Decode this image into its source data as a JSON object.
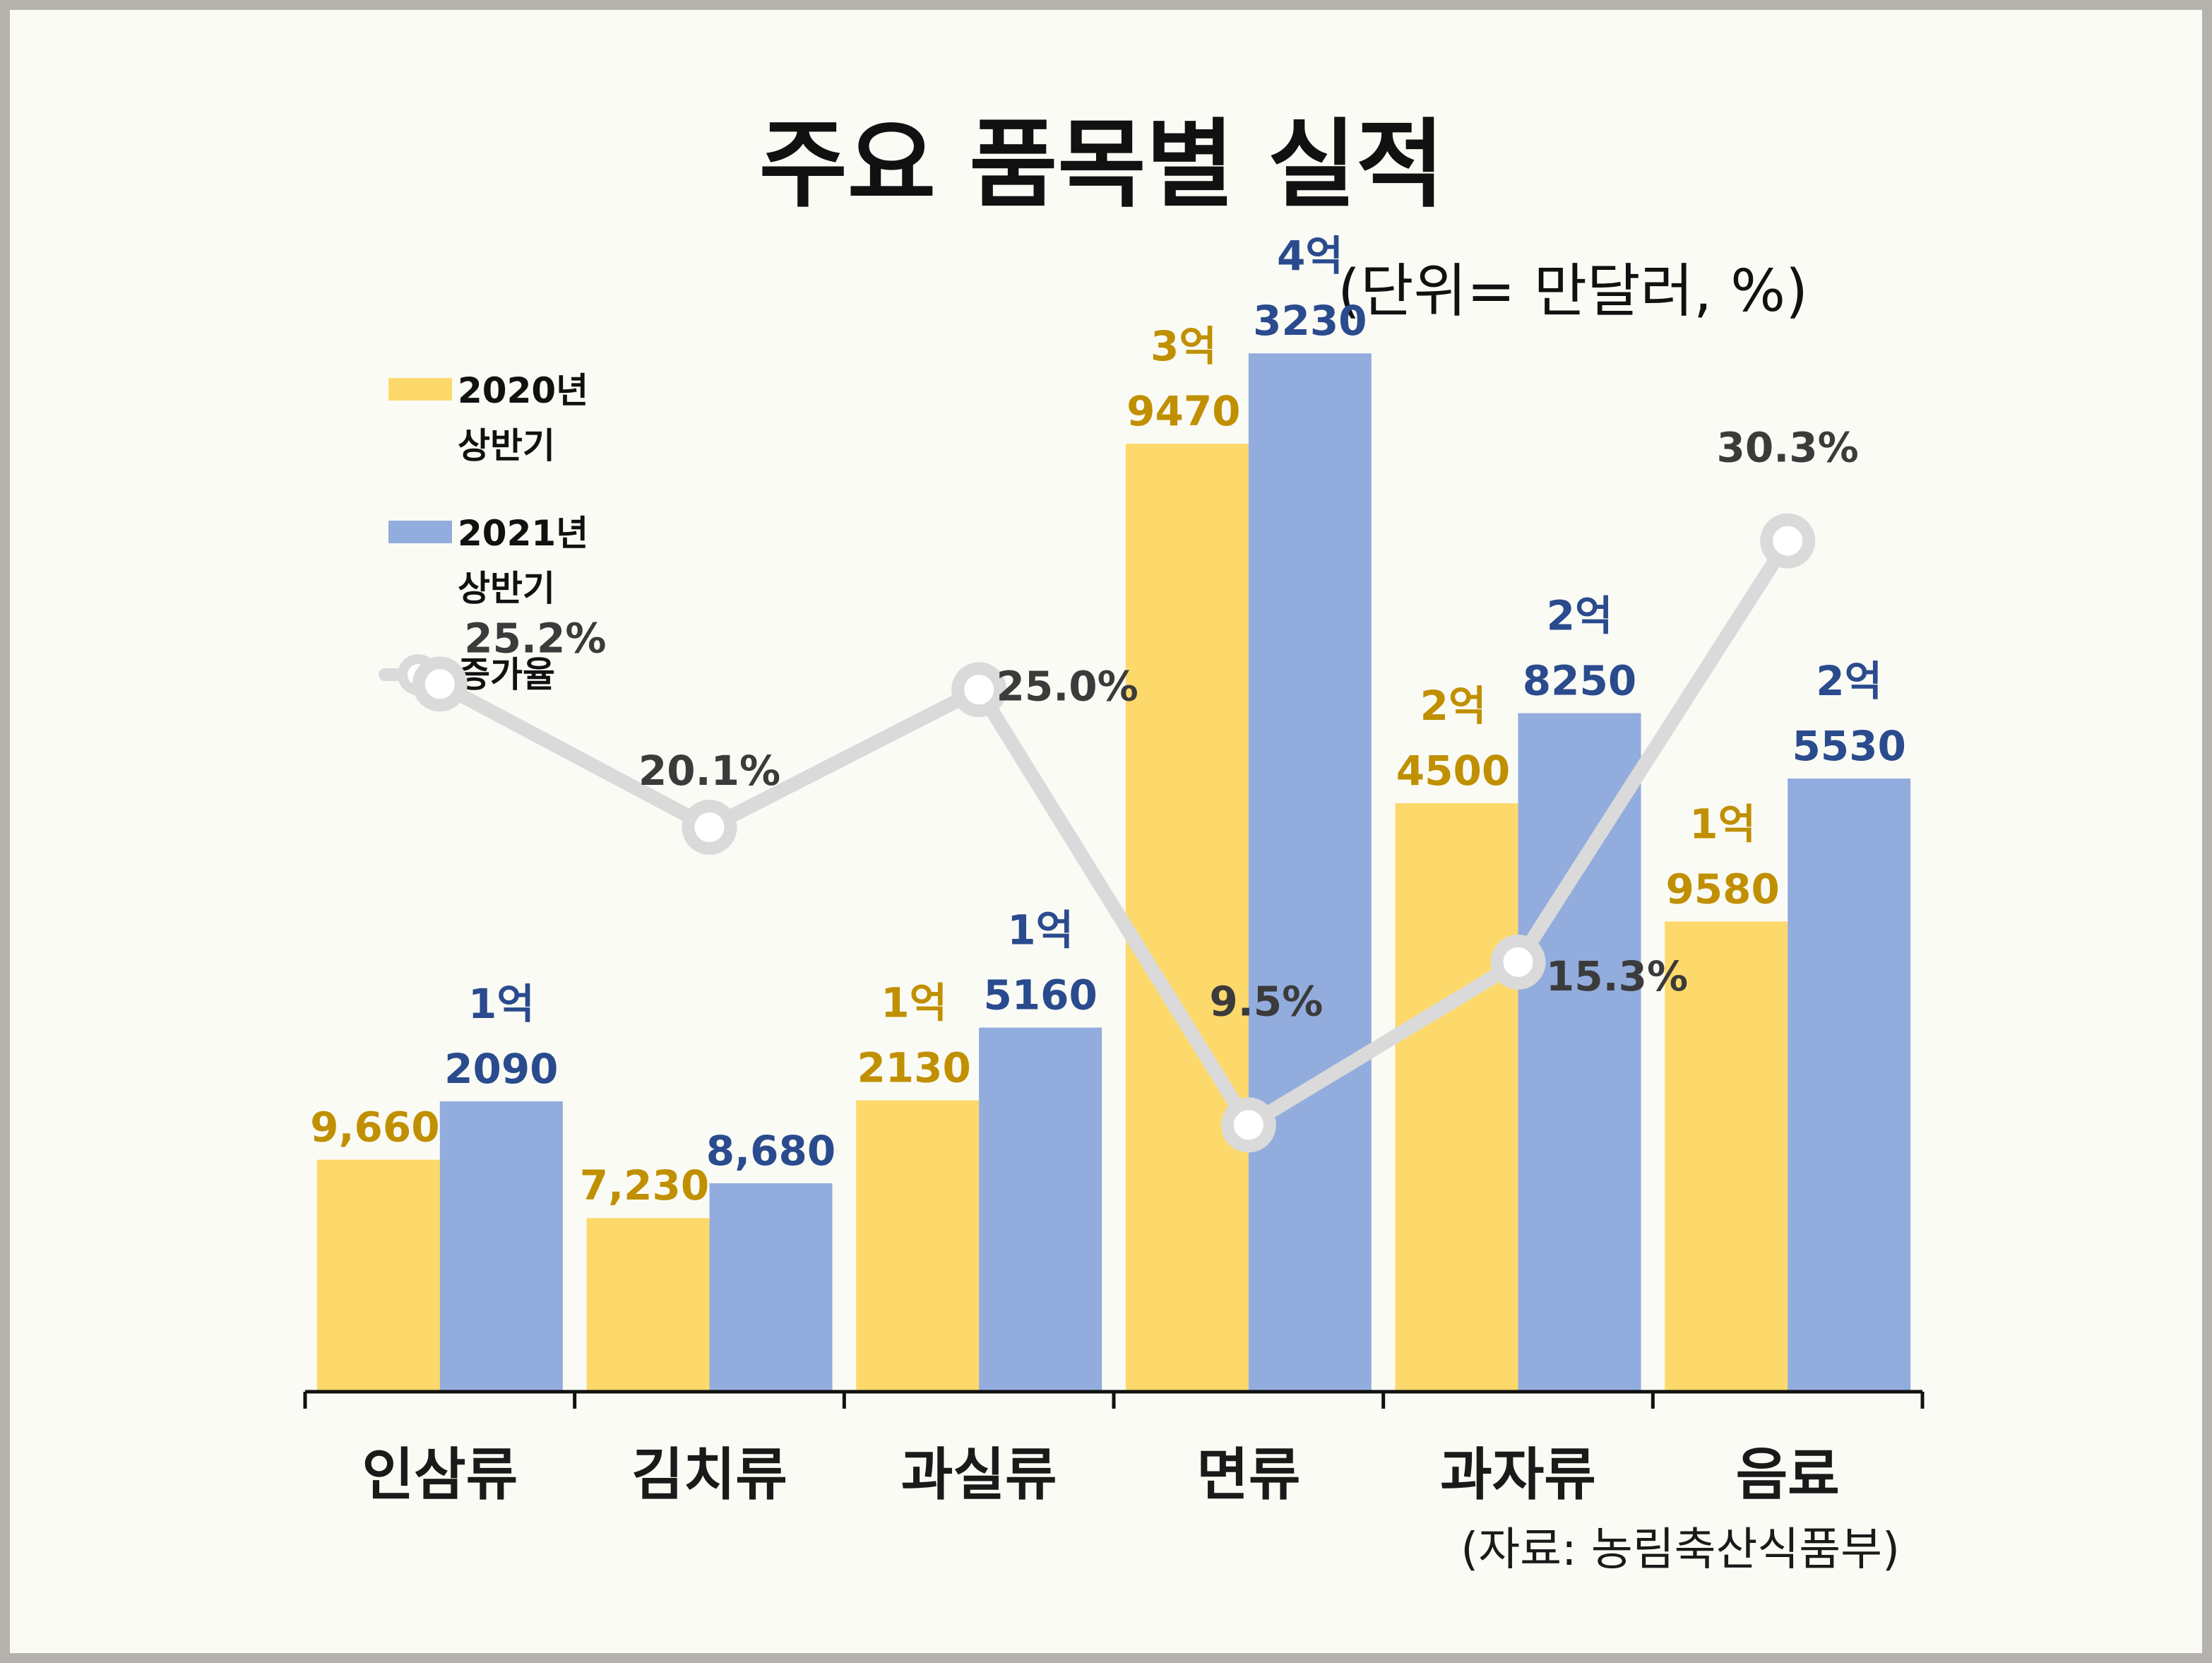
{
  "title": "주요 품목별 실적",
  "unit": "(단위= 만달러, %)",
  "source": "(자료: 농림축산식품부)",
  "colors": {
    "series_2020": "#fdd96b",
    "series_2021": "#92acdd",
    "rate_line": "#dadada",
    "label_2020": "#c09000",
    "label_2021": "#2a4b8d",
    "label_rate": "#3b3b3b"
  },
  "chart_data": {
    "type": "bar",
    "title": "주요 품목별 실적",
    "xlabel": "",
    "ylabel": "",
    "grid": false,
    "legend_position": "top-left",
    "ylim": [
      0,
      45000
    ],
    "rate_ylim": [
      0,
      40
    ],
    "categories": [
      "인삼류",
      "김치류",
      "과실류",
      "면류",
      "과자류",
      "음료"
    ],
    "series": [
      {
        "name": "2020년 상반기",
        "name_lines": [
          "2020년",
          "상반기"
        ],
        "values": [
          9660,
          7230,
          12130,
          39470,
          24500,
          19580
        ],
        "labels": [
          [
            "9,660"
          ],
          [
            "7,230"
          ],
          [
            "1억",
            "2130"
          ],
          [
            "3억",
            "9470"
          ],
          [
            "2억",
            "4500"
          ],
          [
            "1억",
            "9580"
          ]
        ]
      },
      {
        "name": "2021년 상반기",
        "name_lines": [
          "2021년",
          "상반기"
        ],
        "values": [
          12090,
          8680,
          15160,
          43230,
          28250,
          25530
        ],
        "labels": [
          [
            "1억",
            "2090"
          ],
          [
            "8,680"
          ],
          [
            "1억",
            "5160"
          ],
          [
            "4억",
            "3230"
          ],
          [
            "2억",
            "8250"
          ],
          [
            "2억",
            "5530"
          ]
        ]
      },
      {
        "name": "증가율",
        "type": "line",
        "values": [
          25.2,
          20.1,
          25.0,
          9.5,
          15.3,
          30.3
        ],
        "labels": [
          "25.2%",
          "20.1%",
          "25.0%",
          "9.5%",
          "15.3%",
          "30.3%"
        ]
      }
    ]
  }
}
